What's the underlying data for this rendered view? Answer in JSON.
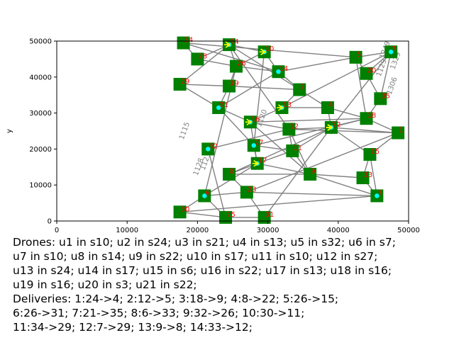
{
  "chart_data": {
    "type": "scatter",
    "title": "",
    "xlabel": "",
    "ylabel": "y",
    "xlim": [
      0,
      50000
    ],
    "ylim": [
      0,
      50000
    ],
    "xticks": [
      "0",
      "10000",
      "20000",
      "30000",
      "40000",
      "50000"
    ],
    "yticks": [
      "0",
      "10000",
      "20000",
      "30000",
      "40000",
      "50000"
    ],
    "grid": false,
    "colors": {
      "station": "#008000",
      "edge": "#808080",
      "label": "#ff0000",
      "drone": "#00ffff",
      "arrow": "#ffff00"
    },
    "stations": [
      {
        "id": "1",
        "x": 48500,
        "y": 24500
      },
      {
        "id": "2",
        "x": 34500,
        "y": 36500
      },
      {
        "id": "3",
        "x": 45500,
        "y": 7000
      },
      {
        "id": "4",
        "x": 38500,
        "y": 31500
      },
      {
        "id": "5",
        "x": 42500,
        "y": 45500
      },
      {
        "id": "6",
        "x": 21000,
        "y": 7000
      },
      {
        "id": "7",
        "x": 47500,
        "y": 47000
      },
      {
        "id": "8",
        "x": 24500,
        "y": 13000
      },
      {
        "id": "9",
        "x": 36000,
        "y": 13000
      },
      {
        "id": "10",
        "x": 29500,
        "y": 47000
      },
      {
        "id": "11",
        "x": 33500,
        "y": 19500
      },
      {
        "id": "12",
        "x": 33000,
        "y": 25500
      },
      {
        "id": "13",
        "x": 32000,
        "y": 31500
      },
      {
        "id": "14",
        "x": 31500,
        "y": 41500
      },
      {
        "id": "15",
        "x": 44500,
        "y": 18500
      },
      {
        "id": "16",
        "x": 27500,
        "y": 27500
      },
      {
        "id": "17",
        "x": 28500,
        "y": 16000
      },
      {
        "id": "18",
        "x": 44000,
        "y": 28500
      },
      {
        "id": "19",
        "x": 24500,
        "y": 37500
      },
      {
        "id": "20",
        "x": 44000,
        "y": 41000
      },
      {
        "id": "21",
        "x": 23000,
        "y": 31500
      },
      {
        "id": "22",
        "x": 39000,
        "y": 26000
      },
      {
        "id": "23",
        "x": 27000,
        "y": 8000
      },
      {
        "id": "24",
        "x": 24500,
        "y": 49000
      },
      {
        "id": "25",
        "x": 24000,
        "y": 1000
      },
      {
        "id": "26",
        "x": 25500,
        "y": 43000
      },
      {
        "id": "27",
        "x": 28000,
        "y": 21000
      },
      {
        "id": "28",
        "x": 20000,
        "y": 45000
      },
      {
        "id": "29",
        "x": 17500,
        "y": 38000
      },
      {
        "id": "30",
        "x": 17500,
        "y": 2500
      },
      {
        "id": "31",
        "x": 29500,
        "y": 1000
      },
      {
        "id": "32",
        "x": 21500,
        "y": 20000
      },
      {
        "id": "33",
        "x": 43500,
        "y": 12000
      },
      {
        "id": "34",
        "x": 18000,
        "y": 49500
      },
      {
        "id": "35",
        "x": 46000,
        "y": 34000
      }
    ],
    "drones": [
      {
        "id": "u1",
        "station": "10"
      },
      {
        "id": "u2",
        "station": "24"
      },
      {
        "id": "u3",
        "station": "21"
      },
      {
        "id": "u4",
        "station": "13"
      },
      {
        "id": "u5",
        "station": "32"
      },
      {
        "id": "u6",
        "station": "7"
      },
      {
        "id": "u7",
        "station": "10"
      },
      {
        "id": "u8",
        "station": "14"
      },
      {
        "id": "u9",
        "station": "22"
      },
      {
        "id": "u10",
        "station": "17"
      },
      {
        "id": "u11",
        "station": "10"
      },
      {
        "id": "u12",
        "station": "27"
      },
      {
        "id": "u13",
        "station": "24"
      },
      {
        "id": "u14",
        "station": "17"
      },
      {
        "id": "u15",
        "station": "6"
      },
      {
        "id": "u16",
        "station": "22"
      },
      {
        "id": "u17",
        "station": "13"
      },
      {
        "id": "u18",
        "station": "16"
      },
      {
        "id": "u19",
        "station": "16"
      },
      {
        "id": "u20",
        "station": "3"
      },
      {
        "id": "u21",
        "station": "22"
      }
    ],
    "edge_labels": [
      "1249",
      "1115",
      "1329",
      "1129",
      "1306",
      "1123",
      "1128",
      "1120"
    ]
  },
  "caption": {
    "lines": [
      "Drones: u1 in s10; u2 in s24; u3 in s21; u4 in s13; u5 in s32; u6 in s7;",
      "u7 in s10; u8 in s14; u9 in s22; u10 in s17; u11 in s10; u12 in s27;",
      "u13 in s24; u14 in s17; u15 in s6; u16 in s22; u17 in s13; u18 in s16;",
      "u19 in s16; u20 in s3; u21 in s22;",
      "Deliveries: 1:24->4; 2:12->5; 3:18->9; 4:8->22; 5:26->15;",
      "6:26->31; 7:21->35; 8:6->33; 9:32->26; 10:30->11;",
      "11:34->29; 12:7->29; 13:9->8; 14:33->12;"
    ]
  }
}
